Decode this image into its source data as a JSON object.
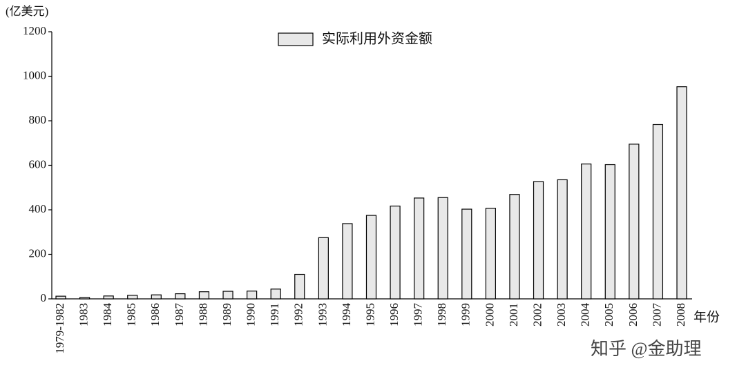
{
  "chart_data": {
    "type": "bar",
    "y_axis_label": "(亿美元)",
    "x_axis_label": "年份",
    "legend_label": "实际利用外资金额",
    "watermark": "知乎 @金助理",
    "color": "#e8e8e8",
    "categories": [
      "1979-1982",
      "1983",
      "1984",
      "1985",
      "1986",
      "1987",
      "1988",
      "1989",
      "1990",
      "1991",
      "1992",
      "1993",
      "1994",
      "1995",
      "1996",
      "1997",
      "1998",
      "1999",
      "2000",
      "2001",
      "2002",
      "2003",
      "2004",
      "2005",
      "2006",
      "2007",
      "2008"
    ],
    "values": [
      12,
      6,
      13,
      16,
      18,
      23,
      32,
      34,
      35,
      44,
      110,
      275,
      338,
      375,
      417,
      453,
      455,
      403,
      407,
      469,
      527,
      535,
      606,
      603,
      695,
      783,
      953
    ],
    "ylim": [
      0,
      1200
    ],
    "yticks": [
      0,
      200,
      400,
      600,
      800,
      1000,
      1200
    ]
  }
}
